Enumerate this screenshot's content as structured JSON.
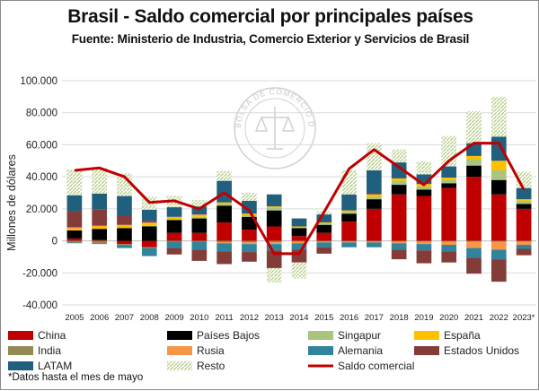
{
  "header": {
    "title": "Brasil - Saldo comercial por principales países",
    "subtitle": "Fuente: Ministerio de Industria, Comercio Exterior y Servicios de Brasil"
  },
  "footnote": "*Datos hasta el mes de mayo",
  "watermark": {
    "text": "BOLSA DE COMERCIO DE ROSARIO"
  },
  "colors": {
    "China": "#c00000",
    "Países Bajos": "#000000",
    "Singapur": "#a9c47f",
    "España": "#ffc000",
    "India": "#948a54",
    "Rusia": "#f79646",
    "Alemania": "#31849b",
    "Estados Unidos": "#843c39",
    "LATAM": "#215f7f",
    "Resto": "#d8e4bc",
    "Saldo comercial": "#c00000"
  },
  "chart_data": {
    "type": "bar",
    "stacked": true,
    "title": "Brasil - Saldo comercial por principales países",
    "ylabel": "Millones de dólares",
    "xlabel": "",
    "ylim": [
      -40000,
      100000
    ],
    "yticks": [
      -40000,
      -20000,
      0,
      20000,
      40000,
      60000,
      80000,
      100000
    ],
    "ytick_labels": [
      "-40.000",
      "-20.000",
      "0",
      "20.000",
      "40.000",
      "60.000",
      "80.000",
      "100.000"
    ],
    "categories": [
      "2005",
      "2006",
      "2007",
      "2008",
      "2009",
      "2010",
      "2011",
      "2012",
      "2013",
      "2014",
      "2015",
      "2016",
      "2017",
      "2018",
      "2019",
      "2020",
      "2021",
      "2022",
      "2023*"
    ],
    "series": [
      {
        "name": "China",
        "values": [
          1500,
          500,
          -2000,
          -4000,
          5000,
          5000,
          11500,
          7000,
          9000,
          3000,
          5000,
          12000,
          20000,
          29000,
          28000,
          33000,
          40000,
          29000,
          20000
        ]
      },
      {
        "name": "Países Bajos",
        "values": [
          5000,
          7000,
          8000,
          9000,
          8000,
          9000,
          10500,
          8000,
          10000,
          5000,
          5000,
          5000,
          6000,
          6000,
          4000,
          3000,
          7000,
          9000,
          3000
        ]
      },
      {
        "name": "Singapur",
        "values": [
          0,
          0,
          0,
          500,
          500,
          1000,
          1000,
          1000,
          1500,
          500,
          1000,
          1000,
          1500,
          2500,
          2000,
          2000,
          4000,
          6000,
          2000
        ]
      },
      {
        "name": "España",
        "values": [
          1000,
          1500,
          1500,
          1500,
          1000,
          1000,
          1000,
          1000,
          1000,
          500,
          500,
          1000,
          1500,
          1500,
          1500,
          1500,
          2000,
          6000,
          1000
        ]
      },
      {
        "name": "India",
        "values": [
          -1000,
          -1500,
          -500,
          -500,
          -500,
          -500,
          -1000,
          -1000,
          -1000,
          -500,
          -500,
          -500,
          -500,
          -500,
          -500,
          -500,
          -500,
          -500,
          -500
        ]
      },
      {
        "name": "Rusia",
        "values": [
          1000,
          500,
          500,
          500,
          500,
          500,
          -500,
          -1000,
          -1000,
          -1000,
          -500,
          -500,
          -500,
          -1000,
          -1500,
          -2000,
          -4000,
          -5000,
          -2000
        ]
      },
      {
        "name": "Alemania",
        "values": [
          -500,
          -500,
          -2000,
          -5000,
          -4000,
          -5000,
          -5000,
          -5000,
          -4000,
          -4000,
          -3000,
          -3000,
          -3000,
          -4000,
          -4000,
          -4000,
          -6000,
          -6000,
          -2500
        ]
      },
      {
        "name": "Estados Unidos",
        "values": [
          10000,
          10000,
          6000,
          1000,
          -4000,
          -7000,
          -8000,
          -6000,
          -11000,
          -8000,
          -4000,
          0,
          1000,
          -6000,
          -8000,
          -7000,
          -10000,
          -14000,
          -4000
        ]
      },
      {
        "name": "LATAM",
        "values": [
          10000,
          10000,
          12000,
          7000,
          6000,
          5000,
          13500,
          8000,
          7500,
          5000,
          5000,
          10000,
          14000,
          10000,
          6000,
          7000,
          8000,
          15000,
          7000
        ]
      },
      {
        "name": "Resto",
        "values": [
          16000,
          16000,
          14000,
          8000,
          7000,
          4000,
          6000,
          5000,
          -9000,
          -10000,
          2000,
          15000,
          17000,
          8000,
          8000,
          19000,
          20000,
          25000,
          10000
        ]
      }
    ],
    "line": {
      "name": "Saldo comercial",
      "values": [
        44000,
        45500,
        40000,
        24000,
        25000,
        20000,
        30000,
        19000,
        -8000,
        -8000,
        18000,
        45000,
        57000,
        46000,
        35000,
        50000,
        61000,
        61000,
        32000
      ]
    },
    "legend": {
      "position": "bottom",
      "entries": [
        "China",
        "Países Bajos",
        "Singapur",
        "España",
        "India",
        "Rusia",
        "Alemania",
        "Estados Unidos",
        "LATAM",
        "Resto",
        "Saldo comercial"
      ]
    }
  }
}
